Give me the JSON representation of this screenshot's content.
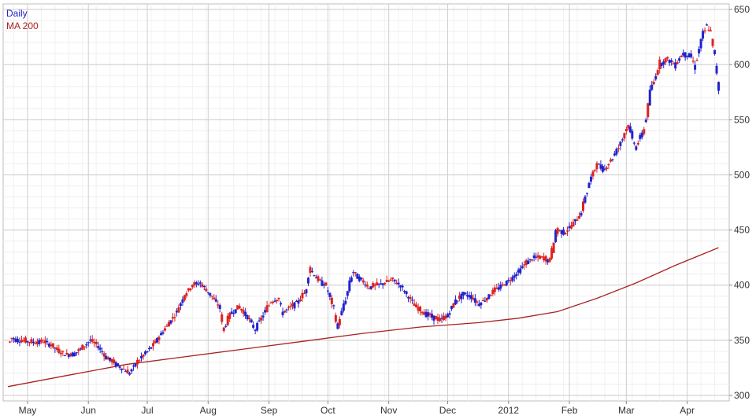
{
  "chart_data": {
    "type": "candlestick",
    "ylim": [
      295,
      655
    ],
    "y_ticks": [
      300,
      350,
      400,
      450,
      500,
      550,
      600,
      650
    ],
    "y_tick_labels": [
      "300",
      "350",
      "400",
      "450",
      "500",
      "550",
      "600",
      "650"
    ],
    "x_ticks": [
      {
        "label": "May",
        "day": 10
      },
      {
        "label": "Jun",
        "day": 41
      },
      {
        "label": "Jul",
        "day": 71
      },
      {
        "label": "Aug",
        "day": 102
      },
      {
        "label": "Sep",
        "day": 133
      },
      {
        "label": "Oct",
        "day": 163
      },
      {
        "label": "Nov",
        "day": 194
      },
      {
        "label": "Dec",
        "day": 224
      },
      {
        "label": "2012",
        "day": 255
      },
      {
        "label": "Feb",
        "day": 286
      },
      {
        "label": "Mar",
        "day": 315
      },
      {
        "label": "Apr",
        "day": 346
      }
    ],
    "x_range": [
      0,
      365
    ],
    "grid": true,
    "legend_position": "top-left",
    "up_color": "#2222cc",
    "down_color": "#dd2222",
    "ma_color": "#aa2222",
    "series": [
      {
        "name": "Daily",
        "color": "#2222cc"
      },
      {
        "name": "MA 200",
        "color": "#aa2222"
      }
    ],
    "closes": [
      [
        0,
        345
      ],
      [
        2,
        352
      ],
      [
        6,
        350
      ],
      [
        10,
        349
      ],
      [
        14,
        348
      ],
      [
        18,
        349
      ],
      [
        22,
        346
      ],
      [
        26,
        340
      ],
      [
        30,
        337
      ],
      [
        34,
        338
      ],
      [
        38,
        343
      ],
      [
        42,
        350
      ],
      [
        46,
        345
      ],
      [
        50,
        335
      ],
      [
        54,
        330
      ],
      [
        58,
        325
      ],
      [
        62,
        320
      ],
      [
        66,
        330
      ],
      [
        70,
        338
      ],
      [
        74,
        345
      ],
      [
        78,
        355
      ],
      [
        82,
        365
      ],
      [
        86,
        375
      ],
      [
        90,
        390
      ],
      [
        94,
        400
      ],
      [
        98,
        402
      ],
      [
        100,
        398
      ],
      [
        104,
        390
      ],
      [
        108,
        380
      ],
      [
        110,
        360
      ],
      [
        114,
        375
      ],
      [
        118,
        380
      ],
      [
        122,
        372
      ],
      [
        126,
        360
      ],
      [
        130,
        372
      ],
      [
        134,
        385
      ],
      [
        138,
        388
      ],
      [
        140,
        375
      ],
      [
        144,
        380
      ],
      [
        148,
        385
      ],
      [
        152,
        395
      ],
      [
        154,
        415
      ],
      [
        158,
        405
      ],
      [
        162,
        400
      ],
      [
        166,
        380
      ],
      [
        168,
        362
      ],
      [
        172,
        385
      ],
      [
        176,
        412
      ],
      [
        180,
        405
      ],
      [
        184,
        398
      ],
      [
        188,
        400
      ],
      [
        192,
        402
      ],
      [
        196,
        405
      ],
      [
        200,
        400
      ],
      [
        204,
        390
      ],
      [
        208,
        380
      ],
      [
        212,
        375
      ],
      [
        216,
        372
      ],
      [
        220,
        368
      ],
      [
        224,
        372
      ],
      [
        228,
        385
      ],
      [
        232,
        392
      ],
      [
        236,
        390
      ],
      [
        240,
        383
      ],
      [
        244,
        388
      ],
      [
        248,
        395
      ],
      [
        252,
        400
      ],
      [
        256,
        405
      ],
      [
        260,
        412
      ],
      [
        264,
        420
      ],
      [
        268,
        425
      ],
      [
        272,
        425
      ],
      [
        276,
        422
      ],
      [
        280,
        450
      ],
      [
        284,
        448
      ],
      [
        288,
        455
      ],
      [
        292,
        465
      ],
      [
        296,
        490
      ],
      [
        300,
        510
      ],
      [
        304,
        505
      ],
      [
        308,
        515
      ],
      [
        312,
        528
      ],
      [
        316,
        545
      ],
      [
        320,
        525
      ],
      [
        324,
        540
      ],
      [
        328,
        578
      ],
      [
        332,
        600
      ],
      [
        336,
        605
      ],
      [
        340,
        600
      ],
      [
        344,
        610
      ],
      [
        348,
        608
      ],
      [
        350,
        598
      ],
      [
        354,
        625
      ],
      [
        356,
        635
      ],
      [
        358,
        630
      ],
      [
        360,
        610
      ],
      [
        362,
        580
      ]
    ],
    "ma200": [
      [
        0,
        308
      ],
      [
        30,
        318
      ],
      [
        60,
        328
      ],
      [
        90,
        335
      ],
      [
        120,
        342
      ],
      [
        150,
        349
      ],
      [
        180,
        356
      ],
      [
        210,
        362
      ],
      [
        240,
        366
      ],
      [
        260,
        370
      ],
      [
        280,
        376
      ],
      [
        300,
        388
      ],
      [
        320,
        402
      ],
      [
        340,
        418
      ],
      [
        362,
        434
      ]
    ]
  }
}
